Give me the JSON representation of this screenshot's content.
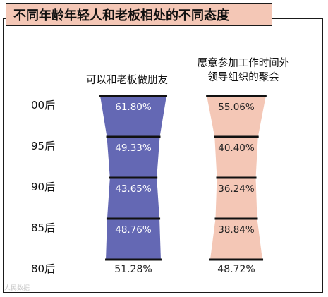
{
  "title": "不同年龄年轻人和老板相处的不同态度",
  "watermark": "人民数据",
  "chart_data": {
    "type": "bar",
    "title": "不同年龄年轻人和老板相处的不同态度",
    "categories": [
      "00后",
      "95后",
      "90后",
      "85后",
      "80后"
    ],
    "series": [
      {
        "name": "可以和老板做朋友",
        "name_lines": [
          "可以和老板做朋友"
        ],
        "values": [
          61.8,
          49.33,
          43.65,
          48.76,
          51.28
        ],
        "labels": [
          "61.80%",
          "49.33%",
          "43.65%",
          "48.76%",
          "51.28%"
        ],
        "color": "#6468b4"
      },
      {
        "name": "愿意参加工作时间外领导组织的聚会",
        "name_lines": [
          "愿意参加工作时间外",
          "领导组织的聚会"
        ],
        "values": [
          55.06,
          40.4,
          36.24,
          38.84,
          48.72
        ],
        "labels": [
          "55.06%",
          "40.40%",
          "36.24%",
          "38.84%",
          "48.72%"
        ],
        "color": "#f4c7b6"
      }
    ],
    "colors": {
      "title_bg": "#f4c7b6",
      "divider": "#111111"
    }
  }
}
